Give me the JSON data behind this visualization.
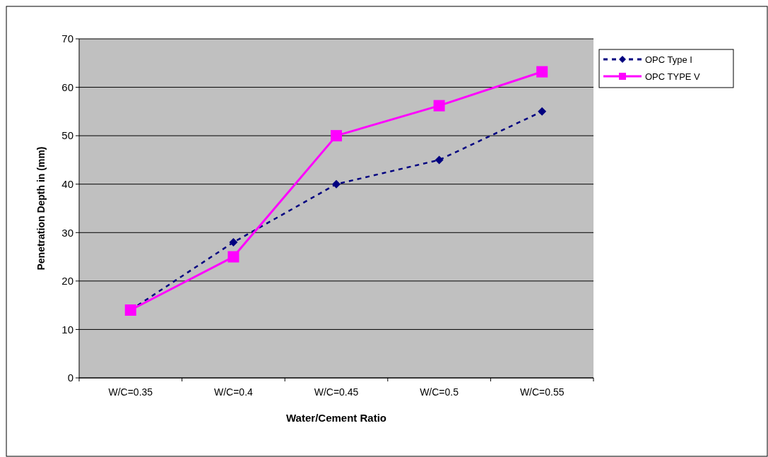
{
  "chart_data": {
    "type": "line",
    "xlabel": "Water/Cement Ratio",
    "ylabel": "Penetration Depth in (mm)",
    "categories": [
      "W/C=0.35",
      "W/C=0.4",
      "W/C=0.45",
      "W/C=0.5",
      "W/C=0.55"
    ],
    "series": [
      {
        "name": "OPC Type I",
        "color": "#000080",
        "values": [
          14,
          28,
          40,
          45,
          55
        ],
        "marker": "diamond",
        "line_style": "dashed"
      },
      {
        "name": "OPC TYPE V",
        "color": "#ff00ff",
        "values": [
          14,
          25,
          50,
          56.2,
          63.2
        ],
        "marker": "square",
        "line_style": "solid"
      }
    ],
    "ylim": [
      0,
      70
    ],
    "yticks": [
      0,
      10,
      20,
      30,
      40,
      50,
      60,
      70
    ],
    "grid": "y",
    "legend": "right"
  }
}
